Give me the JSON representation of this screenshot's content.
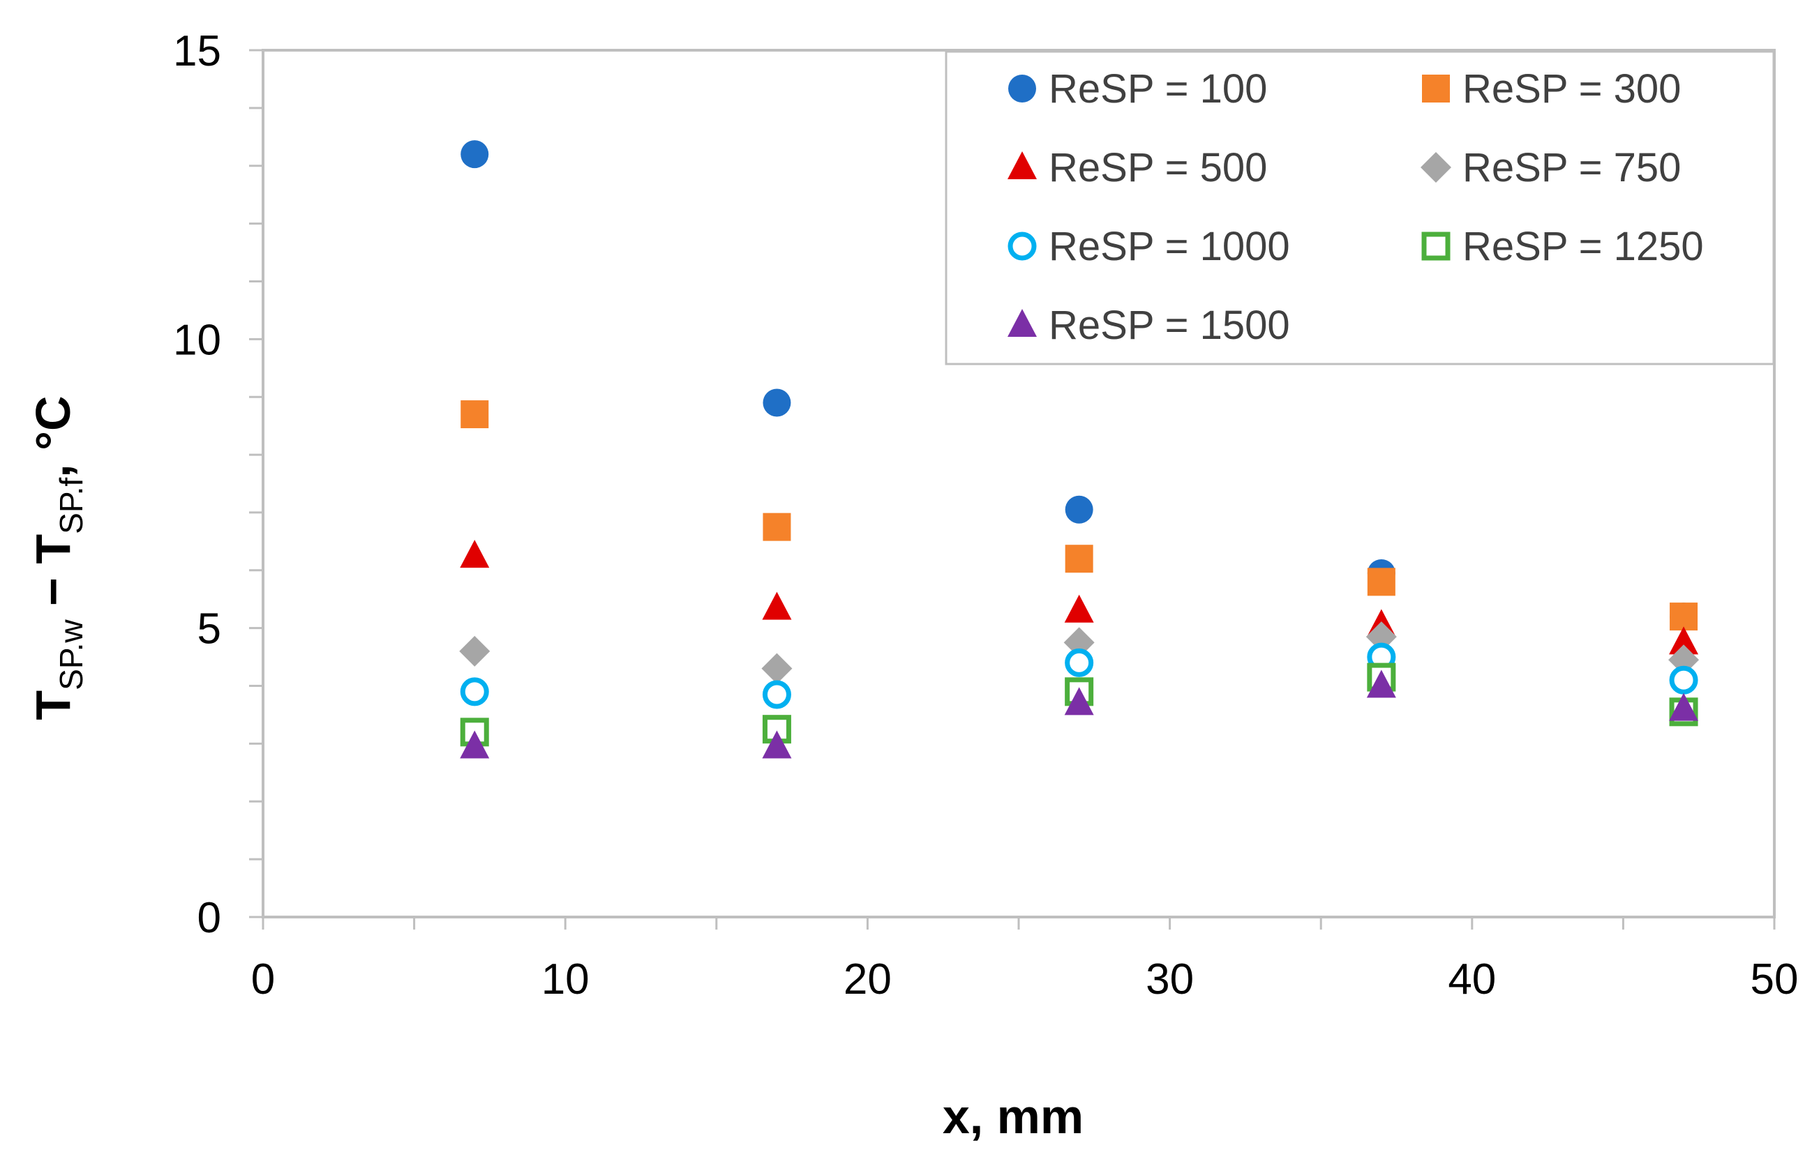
{
  "chart_data": {
    "type": "scatter",
    "title": "",
    "xlabel": "x, mm",
    "ylabel": {
      "main": "T",
      "sub1": "SP.w",
      "minus": " − T",
      "sub2": "SP.f",
      "unit": ", °C"
    },
    "xlim": [
      0,
      50
    ],
    "ylim": [
      0,
      15
    ],
    "x_ticks": [
      0,
      10,
      20,
      30,
      40,
      50
    ],
    "y_ticks": [
      0,
      5,
      10,
      15
    ],
    "x_tick_labels": [
      "0",
      "10",
      "20",
      "30",
      "40",
      "50"
    ],
    "y_tick_labels": [
      "0",
      "5",
      "10",
      "15"
    ],
    "grid": false,
    "legend_position": "top-right",
    "x": [
      7,
      17,
      27,
      37,
      47
    ],
    "series": [
      {
        "name": "ReSP = 100",
        "marker": "circle",
        "color": "#1f6fc6",
        "values": [
          13.2,
          8.9,
          7.05,
          5.95,
          5.2
        ]
      },
      {
        "name": "ReSP = 300",
        "marker": "square",
        "color": "#f5822a",
        "values": [
          8.7,
          6.75,
          6.2,
          5.8,
          5.2
        ]
      },
      {
        "name": "ReSP = 500",
        "marker": "triangle",
        "color": "#e00000",
        "values": [
          6.25,
          5.35,
          5.3,
          5.05,
          4.75
        ]
      },
      {
        "name": "ReSP = 750",
        "marker": "diamond",
        "color": "#a6a6a6",
        "values": [
          4.6,
          4.3,
          4.75,
          4.85,
          4.45
        ]
      },
      {
        "name": "ReSP = 1000",
        "marker": "circle-open",
        "color": "#00b0f0",
        "values": [
          3.9,
          3.85,
          4.4,
          4.5,
          4.1
        ]
      },
      {
        "name": "ReSP = 1250",
        "marker": "square-open",
        "color": "#4caf3c",
        "values": [
          3.2,
          3.25,
          3.9,
          4.15,
          3.55
        ]
      },
      {
        "name": "ReSP = 1500",
        "marker": "triangle",
        "color": "#7b2fa6",
        "values": [
          2.95,
          2.95,
          3.7,
          4.0,
          3.6
        ]
      }
    ]
  }
}
